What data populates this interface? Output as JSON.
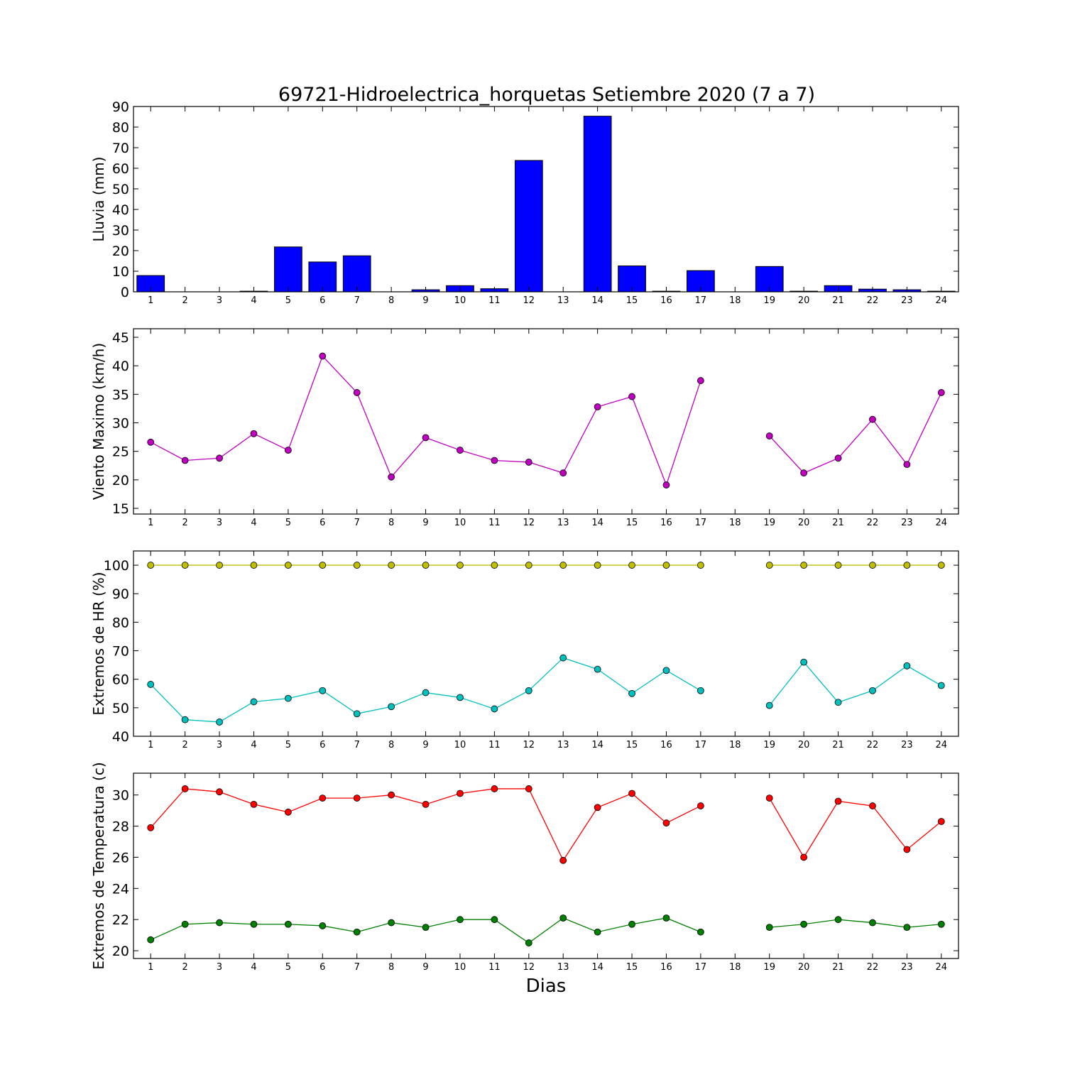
{
  "title": "69721-Hidroelectrica_horquetas Setiembre 2020  (7 a 7)",
  "xlabel": "Dias",
  "chart_data": [
    {
      "type": "bar",
      "ylabel": "Lluvia (mm)",
      "ylim": [
        0,
        90
      ],
      "yticks": [
        0,
        10,
        20,
        30,
        40,
        50,
        60,
        70,
        80,
        90
      ],
      "x": [
        1,
        2,
        3,
        4,
        5,
        6,
        7,
        8,
        9,
        10,
        11,
        12,
        13,
        14,
        15,
        16,
        17,
        18,
        19,
        20,
        21,
        22,
        23,
        24
      ],
      "xticks": [
        1,
        2,
        3,
        4,
        5,
        6,
        7,
        8,
        9,
        10,
        11,
        12,
        13,
        14,
        15,
        16,
        17,
        18,
        19,
        20,
        21,
        22,
        23,
        24
      ],
      "series": [
        {
          "color": "#0000ff",
          "values": [
            7.9,
            0,
            0,
            0.3,
            21.8,
            14.5,
            17.5,
            0,
            1.0,
            3.0,
            1.5,
            63.8,
            0,
            85.3,
            12.6,
            0.3,
            10.3,
            0,
            12.3,
            0.3,
            3.0,
            1.3,
            1.0,
            0.3
          ]
        }
      ],
      "grid": false
    },
    {
      "type": "line",
      "ylabel": "Viento Maximo (km/h)",
      "ylim": [
        14,
        46.5
      ],
      "yticks": [
        15,
        20,
        25,
        30,
        35,
        40,
        45
      ],
      "x": [
        1,
        2,
        3,
        4,
        5,
        6,
        7,
        8,
        9,
        10,
        11,
        12,
        13,
        14,
        15,
        16,
        17,
        18,
        19,
        20,
        21,
        22,
        23,
        24
      ],
      "xticks": [
        1,
        2,
        3,
        4,
        5,
        6,
        7,
        8,
        9,
        10,
        11,
        12,
        13,
        14,
        15,
        16,
        17,
        18,
        19,
        20,
        21,
        22,
        23,
        24
      ],
      "series": [
        {
          "color": "#bf00bf",
          "values": [
            26.6,
            23.4,
            23.8,
            28.1,
            25.2,
            41.7,
            35.3,
            20.5,
            27.4,
            25.2,
            23.4,
            23.1,
            21.2,
            32.8,
            34.6,
            19.1,
            37.4,
            null,
            27.7,
            21.2,
            23.8,
            30.6,
            22.7,
            35.3
          ]
        }
      ],
      "grid": false
    },
    {
      "type": "line",
      "ylabel": "Extremos de HR (%)",
      "ylim": [
        40,
        105
      ],
      "yticks": [
        40,
        50,
        60,
        70,
        80,
        90,
        100
      ],
      "x": [
        1,
        2,
        3,
        4,
        5,
        6,
        7,
        8,
        9,
        10,
        11,
        12,
        13,
        14,
        15,
        16,
        17,
        18,
        19,
        20,
        21,
        22,
        23,
        24
      ],
      "xticks": [
        1,
        2,
        3,
        4,
        5,
        6,
        7,
        8,
        9,
        10,
        11,
        12,
        13,
        14,
        15,
        16,
        17,
        18,
        19,
        20,
        21,
        22,
        23,
        24
      ],
      "series": [
        {
          "color": "#bfbf00",
          "values": [
            100,
            100,
            100,
            100,
            100,
            100,
            100,
            100,
            100,
            100,
            100,
            100,
            100,
            100,
            100,
            100,
            100,
            null,
            100,
            100,
            100,
            100,
            100,
            100
          ]
        },
        {
          "color": "#00bfbf",
          "values": [
            58.2,
            45.8,
            45.0,
            52.1,
            53.3,
            56.0,
            47.9,
            50.4,
            55.3,
            53.6,
            49.6,
            56.0,
            67.5,
            63.5,
            55.0,
            63.1,
            56.0,
            null,
            50.8,
            66.0,
            51.9,
            56.0,
            64.7,
            57.8
          ]
        }
      ],
      "grid": false
    },
    {
      "type": "line",
      "ylabel": "Extremos de Temperatura (c)",
      "ylim": [
        19.5,
        31.4
      ],
      "yticks": [
        20,
        22,
        24,
        26,
        28,
        30
      ],
      "x": [
        1,
        2,
        3,
        4,
        5,
        6,
        7,
        8,
        9,
        10,
        11,
        12,
        13,
        14,
        15,
        16,
        17,
        18,
        19,
        20,
        21,
        22,
        23,
        24
      ],
      "xticks": [
        1,
        2,
        3,
        4,
        5,
        6,
        7,
        8,
        9,
        10,
        11,
        12,
        13,
        14,
        15,
        16,
        17,
        18,
        19,
        20,
        21,
        22,
        23,
        24
      ],
      "series": [
        {
          "color": "#ff0000",
          "values": [
            27.9,
            30.4,
            30.2,
            29.4,
            28.9,
            29.8,
            29.8,
            30.0,
            29.4,
            30.1,
            30.4,
            30.4,
            25.8,
            29.2,
            30.1,
            28.2,
            29.3,
            null,
            29.8,
            26.0,
            29.6,
            29.3,
            26.5,
            28.3
          ]
        },
        {
          "color": "#008000",
          "values": [
            20.7,
            21.7,
            21.8,
            21.7,
            21.7,
            21.6,
            21.2,
            21.8,
            21.5,
            22.0,
            22.0,
            20.5,
            22.1,
            21.2,
            21.7,
            22.1,
            21.2,
            null,
            21.5,
            21.7,
            22.0,
            21.8,
            21.5,
            21.7
          ]
        }
      ],
      "grid": false
    }
  ]
}
